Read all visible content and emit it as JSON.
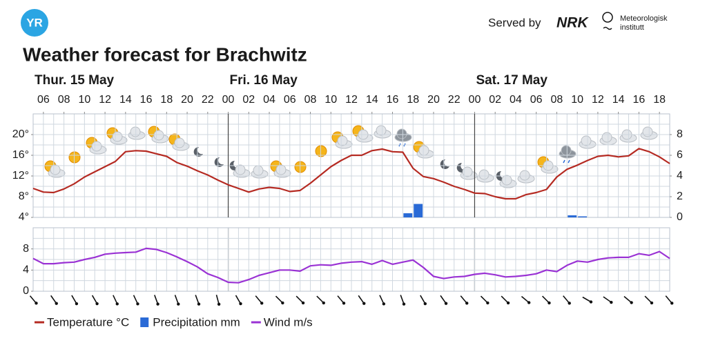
{
  "header": {
    "logo": "YR",
    "served_by": "Served by",
    "nrk": "NRK",
    "met_line1": "Meteorologisk",
    "met_line2": "institutt"
  },
  "chart_data": [
    {
      "type": "line",
      "title": "Weather forecast for Brachwitz",
      "days": [
        {
          "value": 0,
          "label": "Thur. 15 May"
        },
        {
          "value": 24,
          "label": "Fri. 16 May"
        },
        {
          "value": 48,
          "label": "Sat. 17 May"
        }
      ],
      "x": [
        5,
        6,
        7,
        8,
        9,
        10,
        11,
        12,
        13,
        14,
        15,
        16,
        17,
        18,
        19,
        20,
        21,
        22,
        23,
        24,
        25,
        26,
        27,
        28,
        29,
        30,
        31,
        32,
        33,
        34,
        35,
        36,
        37,
        38,
        39,
        40,
        41,
        42,
        43,
        44,
        45,
        46,
        47,
        48,
        49,
        50,
        51,
        52,
        53,
        54,
        55,
        56,
        57,
        58,
        59,
        60,
        61,
        62,
        63,
        64,
        65,
        66,
        67
      ],
      "xlim": [
        5,
        67
      ],
      "xticks": [
        {
          "value": 6,
          "label": "06"
        },
        {
          "value": 8,
          "label": "08"
        },
        10,
        12,
        14,
        16,
        18,
        20,
        22,
        {
          "value": 24,
          "label": "00"
        },
        {
          "value": 26,
          "label": "02"
        },
        {
          "value": 28,
          "label": "04"
        },
        {
          "value": 30,
          "label": "06"
        },
        {
          "value": 32,
          "label": "08"
        },
        {
          "value": 34,
          "label": "10"
        },
        {
          "value": 36,
          "label": "12"
        },
        {
          "value": 38,
          "label": "14"
        },
        {
          "value": 40,
          "label": "16"
        },
        {
          "value": 42,
          "label": "18"
        },
        {
          "value": 44,
          "label": "20"
        },
        {
          "value": 46,
          "label": "22"
        },
        {
          "value": 48,
          "label": "00"
        },
        {
          "value": 50,
          "label": "02"
        },
        {
          "value": 52,
          "label": "04"
        },
        {
          "value": 54,
          "label": "06"
        },
        {
          "value": 56,
          "label": "08"
        },
        {
          "value": 58,
          "label": "10"
        },
        {
          "value": 60,
          "label": "12"
        },
        {
          "value": 62,
          "label": "14"
        },
        {
          "value": 64,
          "label": "16"
        },
        {
          "value": 66,
          "label": "18"
        }
      ],
      "ylim": [
        4,
        24
      ],
      "yticks": [
        {
          "value": 4,
          "label": "4°"
        },
        {
          "value": 8,
          "label": "8°"
        },
        {
          "value": 12,
          "label": "12°"
        },
        {
          "value": 16,
          "label": "16°"
        },
        {
          "value": 20,
          "label": "20°"
        }
      ],
      "y2lim": [
        0,
        10
      ],
      "y2ticks": [
        0,
        2,
        4,
        6,
        8
      ],
      "grid": true,
      "series": [
        {
          "name": "Temperature °C",
          "color": "#b52a22",
          "values": [
            9.6,
            8.9,
            8.8,
            9.5,
            10.5,
            11.8,
            12.8,
            13.8,
            14.8,
            16.7,
            16.9,
            16.8,
            16.3,
            15.8,
            14.6,
            13.9,
            13.0,
            12.2,
            11.2,
            10.3,
            9.6,
            8.9,
            9.5,
            9.8,
            9.6,
            9.0,
            9.2,
            10.6,
            12.2,
            13.8,
            15.0,
            16.0,
            16.0,
            16.9,
            17.2,
            16.7,
            16.6,
            13.5,
            11.9,
            11.5,
            10.8,
            10.0,
            9.4,
            8.7,
            8.6,
            8.0,
            7.6,
            7.6,
            8.4,
            8.8,
            9.4,
            11.8,
            13.3,
            14.1,
            15.0,
            15.8,
            16.0,
            15.7,
            15.9,
            17.3,
            16.7,
            15.7,
            14.4
          ]
        },
        {
          "name": "Precipitation mm",
          "color": "#2a6ad6",
          "type": "bar",
          "axis": "y2",
          "x": [
            41,
            42,
            57,
            58
          ],
          "values": [
            0.4,
            1.3,
            0.2,
            0.1
          ]
        }
      ]
    },
    {
      "type": "line",
      "x": [
        5,
        6,
        7,
        8,
        9,
        10,
        11,
        12,
        13,
        14,
        15,
        16,
        17,
        18,
        19,
        20,
        21,
        22,
        23,
        24,
        25,
        26,
        27,
        28,
        29,
        30,
        31,
        32,
        33,
        34,
        35,
        36,
        37,
        38,
        39,
        40,
        41,
        42,
        43,
        44,
        45,
        46,
        47,
        48,
        49,
        50,
        51,
        52,
        53,
        54,
        55,
        56,
        57,
        58,
        59,
        60,
        61,
        62,
        63,
        64,
        65,
        66,
        67
      ],
      "xlim": [
        5,
        67
      ],
      "ylim": [
        0,
        12
      ],
      "yticks": [
        0,
        4,
        8
      ],
      "grid": true,
      "series": [
        {
          "name": "Wind m/s",
          "color": "#9a32d4",
          "values": [
            6.2,
            5.2,
            5.2,
            5.4,
            5.5,
            6.0,
            6.4,
            7.0,
            7.2,
            7.3,
            7.4,
            8.1,
            7.9,
            7.3,
            6.5,
            5.6,
            4.6,
            3.3,
            2.6,
            1.7,
            1.6,
            2.2,
            3.0,
            3.5,
            4.0,
            4.0,
            3.8,
            4.8,
            5.0,
            4.9,
            5.3,
            5.5,
            5.6,
            5.1,
            5.8,
            5.1,
            5.5,
            5.9,
            4.5,
            2.8,
            2.4,
            2.7,
            2.8,
            3.2,
            3.4,
            3.1,
            2.7,
            2.8,
            3.0,
            3.3,
            4.0,
            3.7,
            4.9,
            5.7,
            5.5,
            6.0,
            6.3,
            6.4,
            6.4,
            7.1,
            6.8,
            7.5,
            6.2
          ]
        }
      ]
    }
  ]
}
